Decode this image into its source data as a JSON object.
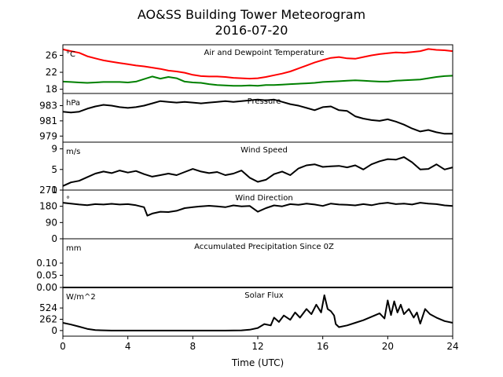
{
  "title": "AO&SS Building Tower Meteorogram",
  "subtitle": "2016-07-20",
  "chart_data": [
    {
      "type": "line",
      "title": "Air and Dewpoint Temperature",
      "unit": "°C",
      "ylim": [
        17,
        28.5
      ],
      "yticks": [
        18,
        22,
        26
      ],
      "xlim": [
        0,
        24
      ],
      "series": [
        {
          "color": "#ff0000",
          "x": [
            0,
            0.5,
            1,
            1.5,
            2,
            2.5,
            3,
            3.5,
            4,
            4.5,
            5,
            5.5,
            6,
            6.5,
            7,
            7.5,
            8,
            8.5,
            9,
            9.5,
            10,
            10.5,
            11,
            11.5,
            12,
            12.5,
            13,
            13.5,
            14,
            14.5,
            15,
            15.5,
            16,
            16.5,
            17,
            17.5,
            18,
            18.5,
            19,
            19.5,
            20,
            20.5,
            21,
            21.5,
            22,
            22.5,
            23,
            23.5,
            24
          ],
          "values": [
            27.4,
            27.0,
            26.6,
            25.8,
            25.3,
            24.8,
            24.5,
            24.2,
            23.9,
            23.6,
            23.4,
            23.1,
            22.8,
            22.4,
            22.2,
            21.9,
            21.4,
            21.1,
            21.0,
            21.0,
            20.9,
            20.7,
            20.6,
            20.5,
            20.6,
            20.9,
            21.3,
            21.7,
            22.2,
            22.9,
            23.6,
            24.3,
            24.9,
            25.4,
            25.6,
            25.3,
            25.2,
            25.6,
            26.0,
            26.3,
            26.5,
            26.7,
            26.6,
            26.8,
            27.0,
            27.5,
            27.3,
            27.2,
            27.0
          ]
        },
        {
          "color": "#008000",
          "x": [
            0,
            0.5,
            1,
            1.5,
            2,
            2.5,
            3,
            3.5,
            4,
            4.5,
            5,
            5.5,
            6,
            6.5,
            7,
            7.5,
            8,
            8.5,
            9,
            9.5,
            10,
            10.5,
            11,
            11.5,
            12,
            12.5,
            13,
            13.5,
            14,
            14.5,
            15,
            15.5,
            16,
            16.5,
            17,
            17.5,
            18,
            18.5,
            19,
            19.5,
            20,
            20.5,
            21,
            21.5,
            22,
            22.5,
            23,
            23.5,
            24
          ],
          "values": [
            19.8,
            19.7,
            19.6,
            19.5,
            19.6,
            19.7,
            19.7,
            19.7,
            19.6,
            19.8,
            20.4,
            21.0,
            20.5,
            20.9,
            20.6,
            19.8,
            19.6,
            19.5,
            19.2,
            19.0,
            18.9,
            18.8,
            18.8,
            18.9,
            18.8,
            19.0,
            19.0,
            19.1,
            19.2,
            19.3,
            19.4,
            19.5,
            19.7,
            19.8,
            19.9,
            20.0,
            20.1,
            20.0,
            19.9,
            19.8,
            19.8,
            20.0,
            20.1,
            20.2,
            20.3,
            20.6,
            20.9,
            21.1,
            21.2
          ]
        }
      ]
    },
    {
      "type": "line",
      "title": "Pressure",
      "unit": "hPa",
      "ylim": [
        978.2,
        984.6
      ],
      "yticks": [
        979,
        981,
        983
      ],
      "xlim": [
        0,
        24
      ],
      "series": [
        {
          "color": "#000000",
          "x": [
            0,
            0.5,
            1,
            1.5,
            2,
            2.5,
            3,
            3.5,
            4,
            4.5,
            5,
            5.5,
            6,
            6.5,
            7,
            7.5,
            8,
            8.5,
            9,
            9.5,
            10,
            10.5,
            11,
            11.5,
            12,
            12.5,
            13,
            13.5,
            14,
            14.5,
            15,
            15.5,
            16,
            16.5,
            17,
            17.5,
            18,
            18.5,
            19,
            19.5,
            20,
            20.5,
            21,
            21.5,
            22,
            22.5,
            23,
            23.5,
            24
          ],
          "values": [
            982.2,
            982.1,
            982.2,
            982.6,
            982.9,
            983.1,
            983.0,
            982.8,
            982.7,
            982.8,
            983.0,
            983.3,
            983.6,
            983.5,
            983.4,
            983.5,
            983.4,
            983.3,
            983.4,
            983.5,
            983.6,
            983.5,
            983.6,
            983.7,
            983.8,
            983.7,
            983.8,
            983.5,
            983.2,
            983.0,
            982.7,
            982.4,
            982.8,
            982.9,
            982.4,
            982.3,
            981.6,
            981.3,
            981.1,
            981.0,
            981.2,
            980.9,
            980.5,
            980.0,
            979.6,
            979.8,
            979.5,
            979.3,
            979.3
          ]
        }
      ]
    },
    {
      "type": "line",
      "title": "Wind Speed",
      "unit": "m/s",
      "ylim": [
        1,
        10.3
      ],
      "yticks": [
        1,
        5,
        9
      ],
      "xlim": [
        0,
        24
      ],
      "series": [
        {
          "color": "#000000",
          "x": [
            0,
            0.5,
            1,
            1.5,
            2,
            2.5,
            3,
            3.5,
            4,
            4.5,
            5,
            5.5,
            6,
            6.5,
            7,
            7.5,
            8,
            8.5,
            9,
            9.5,
            10,
            10.5,
            11,
            11.5,
            12,
            12.5,
            13,
            13.5,
            14,
            14.5,
            15,
            15.5,
            16,
            16.5,
            17,
            17.5,
            18,
            18.5,
            19,
            19.5,
            20,
            20.5,
            21,
            21.5,
            22,
            22.5,
            23,
            23.5,
            24
          ],
          "values": [
            1.8,
            2.5,
            2.8,
            3.5,
            4.2,
            4.6,
            4.3,
            4.8,
            4.4,
            4.7,
            4.1,
            3.6,
            3.9,
            4.2,
            3.9,
            4.5,
            5.1,
            4.6,
            4.3,
            4.5,
            3.9,
            4.2,
            4.8,
            3.4,
            2.6,
            3.0,
            4.1,
            4.6,
            3.9,
            5.2,
            5.8,
            6.0,
            5.5,
            5.6,
            5.7,
            5.4,
            5.8,
            5.0,
            6.0,
            6.6,
            7.0,
            6.9,
            7.4,
            6.4,
            5.0,
            5.1,
            6.0,
            5.0,
            5.4
          ]
        }
      ]
    },
    {
      "type": "line",
      "title": "Wind Direction",
      "unit": "°",
      "ylim": [
        0,
        270
      ],
      "yticks": [
        0,
        90,
        180,
        270
      ],
      "xlim": [
        0,
        24
      ],
      "series": [
        {
          "color": "#000000",
          "x": [
            0,
            0.5,
            1,
            1.5,
            2,
            2.5,
            3,
            3.5,
            4,
            4.5,
            5,
            5.2,
            5.5,
            6,
            6.5,
            7,
            7.5,
            8,
            8.5,
            9,
            9.5,
            10,
            10.5,
            11,
            11.5,
            12,
            12.5,
            13,
            13.5,
            14,
            14.5,
            15,
            15.5,
            16,
            16.5,
            17,
            17.5,
            18,
            18.5,
            19,
            19.5,
            20,
            20.5,
            21,
            21.5,
            22,
            22.5,
            23,
            23.5,
            24
          ],
          "values": [
            200,
            195,
            190,
            186,
            192,
            190,
            194,
            190,
            192,
            186,
            175,
            128,
            140,
            150,
            148,
            155,
            170,
            175,
            180,
            183,
            180,
            175,
            185,
            180,
            182,
            150,
            170,
            185,
            180,
            192,
            188,
            195,
            190,
            182,
            195,
            190,
            188,
            185,
            192,
            186,
            195,
            200,
            192,
            195,
            190,
            200,
            195,
            192,
            185,
            182
          ]
        }
      ]
    },
    {
      "type": "line",
      "title": "Accumulated Precipitation Since 0Z",
      "unit": "mm",
      "ylim": [
        0,
        0.2
      ],
      "yticks": [
        0.0,
        0.05,
        0.1
      ],
      "ytick_labels": [
        "0.00",
        "0.05",
        "0.10"
      ],
      "xlim": [
        0,
        24
      ],
      "series": [
        {
          "color": "#000000",
          "x": [
            0,
            24
          ],
          "values": [
            0,
            0
          ]
        }
      ]
    },
    {
      "type": "line",
      "title": "Solar Flux",
      "unit": "W/m^2",
      "ylim": [
        -130,
        1000
      ],
      "yticks": [
        0,
        262,
        524
      ],
      "xlim": [
        0,
        24
      ],
      "xticks": [
        0,
        4,
        8,
        12,
        16,
        20,
        24
      ],
      "xlabel": "Time (UTC)",
      "series": [
        {
          "color": "#000000",
          "x": [
            0,
            0.5,
            1,
            1.5,
            2,
            3,
            4,
            6,
            8,
            10,
            11,
            11.5,
            12,
            12.4,
            12.8,
            13.0,
            13.3,
            13.6,
            14.0,
            14.3,
            14.6,
            15.0,
            15.3,
            15.6,
            15.9,
            16.1,
            16.3,
            16.5,
            16.7,
            16.8,
            17.0,
            17.5,
            18.0,
            18.5,
            19.0,
            19.5,
            19.8,
            20.0,
            20.2,
            20.4,
            20.6,
            20.8,
            21.0,
            21.3,
            21.6,
            21.8,
            22.0,
            22.3,
            22.6,
            23.0,
            23.5,
            24
          ],
          "values": [
            180,
            140,
            90,
            40,
            10,
            0,
            0,
            0,
            0,
            0,
            5,
            20,
            60,
            150,
            120,
            300,
            200,
            350,
            250,
            420,
            300,
            500,
            380,
            600,
            420,
            820,
            500,
            450,
            350,
            150,
            80,
            120,
            180,
            240,
            320,
            400,
            280,
            700,
            360,
            680,
            420,
            600,
            380,
            500,
            300,
            420,
            160,
            500,
            380,
            300,
            220,
            180
          ]
        }
      ]
    }
  ]
}
